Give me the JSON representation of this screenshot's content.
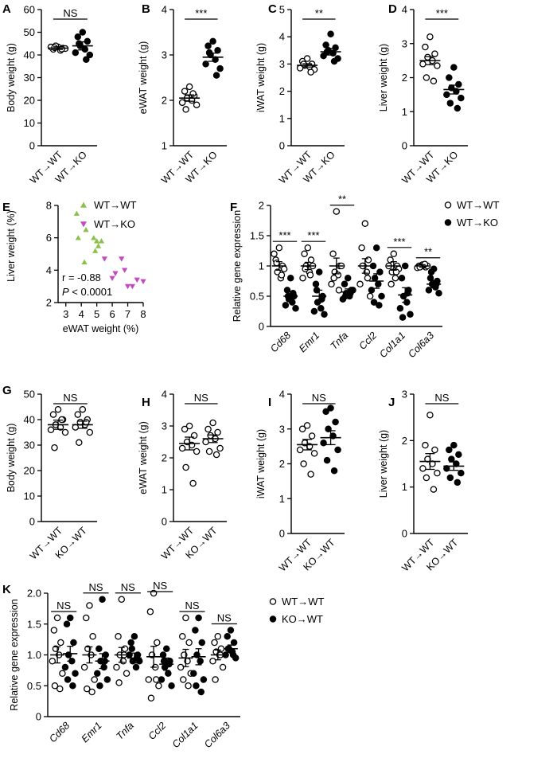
{
  "figure": {
    "colors": {
      "axis": "#000000",
      "wt_wt_marker": "#8bc34a",
      "wt_ko_marker": "#c24bc4"
    }
  },
  "chart_data": [
    {
      "id": "A",
      "panel_label": "A",
      "type": "scatter",
      "ylabel": "Body weight (g)",
      "ylim": [
        0,
        60
      ],
      "yticks": [
        0,
        10,
        20,
        30,
        40,
        50,
        60
      ],
      "groups": [
        {
          "name": "WT→WT",
          "fill": "open",
          "mean": 43,
          "sem": 0.6,
          "values": [
            43.5,
            42.5,
            43,
            44,
            42,
            43.5,
            42.8,
            43.2,
            42.6
          ]
        },
        {
          "name": "WT→KO",
          "fill": "filled",
          "mean": 44,
          "sem": 1.8,
          "values": [
            50,
            48,
            46,
            44,
            42.5,
            41,
            40,
            45,
            38
          ]
        }
      ],
      "significance": "NS"
    },
    {
      "id": "B",
      "panel_label": "B",
      "type": "scatter",
      "ylabel": "eWAT weight (g)",
      "ylim": [
        1,
        4
      ],
      "yticks": [
        1,
        2,
        3,
        4
      ],
      "groups": [
        {
          "name": "WT→WT",
          "fill": "open",
          "mean": 2.05,
          "sem": 0.07,
          "values": [
            2.3,
            2.2,
            2.1,
            2.05,
            2.0,
            1.95,
            1.9,
            1.8,
            2.15
          ]
        },
        {
          "name": "WT→KO",
          "fill": "filled",
          "mean": 2.95,
          "sem": 0.09,
          "values": [
            3.3,
            3.2,
            3.1,
            3.0,
            2.9,
            2.8,
            2.7,
            3.05,
            2.55
          ]
        }
      ],
      "significance": "***"
    },
    {
      "id": "C",
      "panel_label": "C",
      "type": "scatter",
      "ylabel": "iWAT weight (g)",
      "ylim": [
        0,
        5
      ],
      "yticks": [
        0,
        1,
        2,
        3,
        4,
        5
      ],
      "groups": [
        {
          "name": "WT→WT",
          "fill": "open",
          "mean": 2.95,
          "sem": 0.06,
          "values": [
            3.2,
            3.1,
            3.0,
            2.95,
            2.9,
            2.85,
            2.8,
            3.0,
            2.7
          ]
        },
        {
          "name": "WT→KO",
          "fill": "filled",
          "mean": 3.45,
          "sem": 0.12,
          "values": [
            4.1,
            3.7,
            3.6,
            3.5,
            3.4,
            3.3,
            3.2,
            3.45,
            3.1
          ]
        }
      ],
      "significance": "**"
    },
    {
      "id": "D",
      "panel_label": "D",
      "type": "scatter",
      "ylabel": "Liver weight (g)",
      "ylim": [
        0,
        4
      ],
      "yticks": [
        0,
        1,
        2,
        3,
        4
      ],
      "groups": [
        {
          "name": "WT→WT",
          "fill": "open",
          "mean": 2.5,
          "sem": 0.12,
          "values": [
            3.2,
            2.9,
            2.7,
            2.6,
            2.5,
            2.4,
            2.35,
            2.0,
            1.9
          ]
        },
        {
          "name": "WT→KO",
          "fill": "filled",
          "mean": 1.65,
          "sem": 0.13,
          "values": [
            2.3,
            2.0,
            1.8,
            1.7,
            1.6,
            1.5,
            1.4,
            1.25,
            1.1
          ]
        }
      ],
      "significance": "***"
    },
    {
      "id": "E",
      "panel_label": "E",
      "type": "scatter",
      "xlabel": "eWAT weight (%)",
      "ylabel": "Liver weight (%)",
      "xlim": [
        2.5,
        8
      ],
      "ylim": [
        2,
        8
      ],
      "xticks": [
        3,
        4,
        5,
        6,
        7,
        8
      ],
      "yticks": [
        2,
        4,
        6,
        8
      ],
      "series": [
        {
          "name": "WT→WT",
          "marker": "triangle-up",
          "color": "#8bc34a",
          "x": [
            3.7,
            4.3,
            3.8,
            4.8,
            5.0,
            5.1,
            4.9,
            5.3,
            4.2
          ],
          "y": [
            7.5,
            6.5,
            6.0,
            6.0,
            5.8,
            5.5,
            5.2,
            5.8,
            4.5
          ]
        },
        {
          "name": "WT→KO",
          "marker": "triangle-down",
          "color": "#c24bc4",
          "x": [
            5.5,
            6.2,
            6.6,
            6.0,
            7.0,
            7.3,
            7.6,
            8.0,
            6.8
          ],
          "y": [
            4.7,
            3.8,
            4.7,
            3.5,
            3.0,
            3.0,
            3.4,
            3.3,
            4.0
          ]
        }
      ],
      "annotation_r": "r = -0.88",
      "annotation_p_label": "P",
      "annotation_p_rest": " < 0.0001"
    },
    {
      "id": "F",
      "panel_label": "F",
      "type": "scatter",
      "ylabel": "Relative gene expression",
      "ylim": [
        0,
        2.0
      ],
      "yticks": [
        0,
        0.5,
        1.0,
        1.5,
        2.0
      ],
      "categories": [
        "Cd68",
        "Emr1",
        "Tnfa",
        "Ccl2",
        "Col1a1",
        "Col6a3"
      ],
      "series": [
        {
          "name": "WT→WT",
          "fill": "open",
          "means": [
            1.0,
            1.0,
            1.0,
            1.0,
            1.0,
            1.0
          ],
          "sems": [
            0.07,
            0.06,
            0.13,
            0.12,
            0.07,
            0.02
          ],
          "values": [
            [
              1.3,
              1.1,
              1.0,
              0.9,
              0.8,
              1.2,
              0.95,
              1.05,
              0.85
            ],
            [
              1.3,
              1.2,
              1.1,
              1.0,
              0.9,
              0.8,
              1.0,
              0.95,
              0.85
            ],
            [
              1.9,
              1.2,
              1.0,
              0.9,
              0.85,
              0.7,
              1.0,
              0.8,
              0.6
            ],
            [
              1.7,
              1.3,
              1.1,
              1.0,
              0.9,
              0.7,
              0.5,
              1.0,
              0.8
            ],
            [
              1.2,
              1.1,
              1.0,
              0.9,
              0.8,
              1.0,
              0.95,
              0.7,
              0.9
            ],
            [
              1.02,
              1.0,
              0.98,
              0.99,
              1.01,
              0.97,
              1.0,
              0.98,
              1.03
            ]
          ]
        },
        {
          "name": "WT→KO",
          "fill": "filled",
          "means": [
            0.5,
            0.5,
            0.57,
            0.75,
            0.52,
            0.7
          ],
          "sems": [
            0.07,
            0.1,
            0.05,
            0.12,
            0.12,
            0.06
          ],
          "values": [
            [
              0.8,
              0.6,
              0.5,
              0.45,
              0.4,
              0.35,
              0.3,
              0.5,
              0.55
            ],
            [
              0.9,
              0.7,
              0.5,
              0.4,
              0.3,
              0.25,
              0.2,
              0.6,
              0.45
            ],
            [
              0.8,
              0.7,
              0.6,
              0.55,
              0.5,
              0.45,
              0.6,
              0.5,
              0.55
            ],
            [
              1.3,
              1.0,
              0.9,
              0.8,
              0.7,
              0.6,
              0.5,
              0.4,
              0.35
            ],
            [
              1.0,
              0.8,
              0.6,
              0.5,
              0.4,
              0.3,
              0.2,
              0.15,
              0.55
            ],
            [
              0.95,
              0.8,
              0.75,
              0.7,
              0.65,
              0.6,
              0.55,
              0.9,
              0.7
            ]
          ]
        }
      ],
      "significance": [
        "***",
        "***",
        "**",
        "",
        "***",
        "**"
      ]
    },
    {
      "id": "G",
      "panel_label": "G",
      "type": "scatter",
      "ylabel": "Body weight (g)",
      "ylim": [
        0,
        50
      ],
      "yticks": [
        0,
        10,
        20,
        30,
        40,
        50
      ],
      "groups": [
        {
          "name": "WT→WT",
          "fill": "open",
          "mean": 38,
          "sem": 1.8,
          "values": [
            44,
            42,
            40,
            38,
            37,
            36,
            35,
            29,
            40
          ]
        },
        {
          "name": "KO→WT",
          "fill": "open",
          "mean": 38,
          "sem": 1.4,
          "values": [
            44,
            42,
            40,
            39,
            38,
            37,
            35,
            31,
            39
          ]
        }
      ],
      "significance": "NS"
    },
    {
      "id": "H",
      "panel_label": "H",
      "type": "scatter",
      "ylabel": "eWAT weight (g)",
      "ylim": [
        0,
        4
      ],
      "yticks": [
        0,
        1,
        2,
        3,
        4
      ],
      "groups": [
        {
          "name": "WT→WT",
          "fill": "open",
          "mean": 2.45,
          "sem": 0.2,
          "values": [
            3.0,
            2.9,
            2.7,
            2.5,
            2.4,
            2.3,
            2.2,
            1.7,
            1.2
          ]
        },
        {
          "name": "KO→WT",
          "fill": "open",
          "mean": 2.6,
          "sem": 0.12,
          "values": [
            3.1,
            2.9,
            2.8,
            2.7,
            2.6,
            2.5,
            2.3,
            2.2,
            2.1
          ]
        }
      ],
      "significance": "NS"
    },
    {
      "id": "I",
      "panel_label": "I",
      "type": "scatter",
      "ylabel": "iWAT weight (g)",
      "ylim": [
        0,
        4
      ],
      "yticks": [
        0,
        1,
        2,
        3,
        4
      ],
      "groups": [
        {
          "name": "WT→WT",
          "fill": "open",
          "mean": 2.55,
          "sem": 0.15,
          "values": [
            3.1,
            3.0,
            2.8,
            2.6,
            2.5,
            2.4,
            2.3,
            2.0,
            1.7
          ]
        },
        {
          "name": "KO→WT",
          "fill": "filled",
          "mean": 2.75,
          "sem": 0.2,
          "values": [
            3.6,
            3.5,
            3.2,
            3.0,
            2.8,
            2.6,
            2.4,
            2.1,
            1.8
          ]
        }
      ],
      "significance": "NS"
    },
    {
      "id": "J",
      "panel_label": "J",
      "type": "scatter",
      "ylabel": "Liver weight (g)",
      "ylim": [
        0,
        3
      ],
      "yticks": [
        0,
        1,
        2,
        3
      ],
      "groups": [
        {
          "name": "WT→WT",
          "fill": "open",
          "mean": 1.55,
          "sem": 0.17,
          "values": [
            2.55,
            1.9,
            1.8,
            1.6,
            1.5,
            1.4,
            1.3,
            1.2,
            0.95
          ]
        },
        {
          "name": "KO→WT",
          "fill": "filled",
          "mean": 1.45,
          "sem": 0.09,
          "values": [
            1.9,
            1.8,
            1.7,
            1.6,
            1.5,
            1.4,
            1.3,
            1.2,
            1.1
          ]
        }
      ],
      "significance": "NS"
    },
    {
      "id": "K",
      "panel_label": "K",
      "type": "scatter",
      "ylabel": "Relative gene expression",
      "ylim": [
        0,
        2.0
      ],
      "yticks": [
        0,
        0.5,
        1.0,
        1.5,
        2.0
      ],
      "yticklabels": [
        "0",
        "0.5",
        "1.0",
        "1.5",
        "2.0"
      ],
      "categories": [
        "Cd68",
        "Emr1",
        "Tnfa",
        "Ccl2",
        "Col1a1",
        "Col6a3"
      ],
      "series": [
        {
          "name": "WT→WT",
          "fill": "open",
          "means": [
            1.0,
            1.0,
            1.0,
            0.97,
            0.95,
            1.0
          ],
          "sems": [
            0.13,
            0.13,
            0.12,
            0.17,
            0.14,
            0.08
          ],
          "values": [
            [
              1.6,
              1.4,
              1.2,
              1.1,
              1.0,
              0.9,
              0.7,
              0.5,
              0.45
            ],
            [
              1.8,
              1.6,
              1.3,
              1.1,
              1.0,
              0.8,
              0.6,
              0.45,
              0.4
            ],
            [
              1.9,
              1.3,
              1.1,
              1.0,
              0.9,
              0.8,
              0.7,
              0.55,
              1.0
            ],
            [
              2.0,
              1.7,
              1.2,
              1.0,
              0.8,
              0.6,
              0.5,
              0.3,
              0.6
            ],
            [
              1.6,
              1.3,
              1.2,
              1.0,
              0.9,
              0.8,
              0.7,
              0.6,
              0.5
            ],
            [
              1.3,
              1.2,
              1.1,
              1.05,
              1.0,
              0.9,
              0.8,
              0.6,
              1.0
            ]
          ]
        },
        {
          "name": "KO→WT",
          "fill": "filled",
          "means": [
            1.02,
            0.9,
            0.95,
            0.85,
            0.97,
            1.1
          ],
          "sems": [
            0.12,
            0.12,
            0.08,
            0.1,
            0.13,
            0.06
          ],
          "values": [
            [
              1.6,
              1.5,
              1.2,
              1.0,
              0.9,
              0.8,
              0.7,
              0.6,
              0.5
            ],
            [
              1.9,
              1.1,
              1.0,
              0.9,
              0.8,
              0.7,
              0.6,
              0.5,
              0.9
            ],
            [
              1.3,
              1.2,
              1.0,
              0.9,
              0.8,
              1.0,
              0.9,
              1.1,
              0.95
            ],
            [
              1.1,
              1.0,
              0.9,
              0.8,
              0.7,
              0.6,
              0.5,
              0.9,
              0.85
            ],
            [
              1.6,
              1.4,
              1.2,
              1.0,
              0.9,
              0.7,
              0.6,
              0.5,
              0.4
            ],
            [
              1.4,
              1.3,
              1.2,
              1.1,
              1.05,
              1.0,
              0.95,
              1.1,
              1.0
            ]
          ]
        }
      ],
      "significance": [
        "NS",
        "NS",
        "NS",
        "NS",
        "NS",
        "NS"
      ]
    }
  ]
}
